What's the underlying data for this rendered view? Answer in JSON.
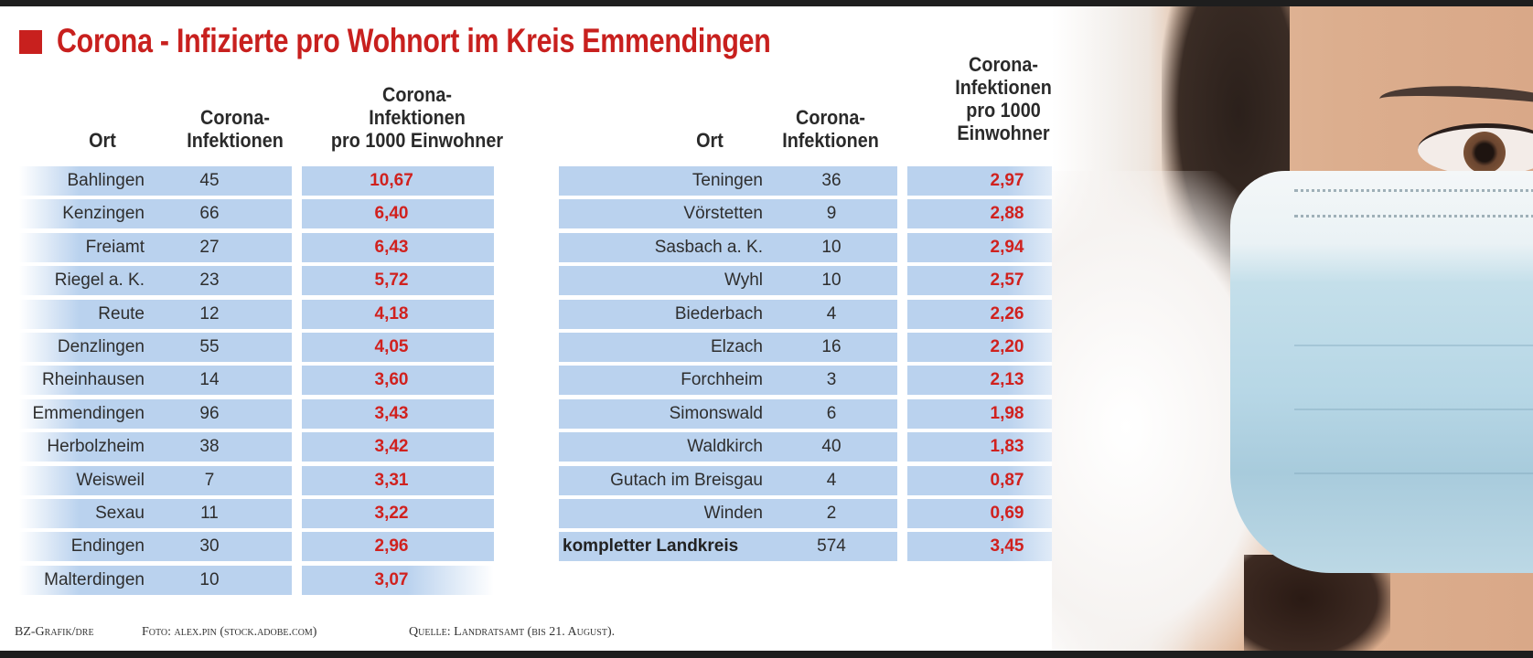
{
  "title": "Corona - Infizierte pro Wohnort im Kreis Emmendingen",
  "colors": {
    "accent": "#c8201e",
    "bar": "#bad2ee",
    "value": "#d0211e"
  },
  "left_headers": {
    "ort": "Ort",
    "inf_1": "Corona-",
    "inf_2": "Infektionen",
    "rate_1": "Corona-",
    "rate_2": "Infektionen",
    "rate_3": "pro 1000 Einwohner"
  },
  "right_headers": {
    "ort": "Ort",
    "inf_1": "Corona-",
    "inf_2": "Infektionen",
    "rate_1": "Corona-",
    "rate_2": "Infektionen",
    "rate_3": "pro 1000",
    "rate_4": "Einwohner"
  },
  "left_rows": [
    {
      "ort": "Bahlingen",
      "infektionen": "45",
      "pro_1000": "10,67"
    },
    {
      "ort": "Kenzingen",
      "infektionen": "66",
      "pro_1000": "6,40"
    },
    {
      "ort": "Freiamt",
      "infektionen": "27",
      "pro_1000": "6,43"
    },
    {
      "ort": "Riegel a. K.",
      "infektionen": "23",
      "pro_1000": "5,72"
    },
    {
      "ort": "Reute",
      "infektionen": "12",
      "pro_1000": "4,18"
    },
    {
      "ort": "Denzlingen",
      "infektionen": "55",
      "pro_1000": "4,05"
    },
    {
      "ort": "Rheinhausen",
      "infektionen": "14",
      "pro_1000": "3,60"
    },
    {
      "ort": "Emmendingen",
      "infektionen": "96",
      "pro_1000": "3,43"
    },
    {
      "ort": "Herbolzheim",
      "infektionen": "38",
      "pro_1000": "3,42"
    },
    {
      "ort": "Weisweil",
      "infektionen": "7",
      "pro_1000": "3,31"
    },
    {
      "ort": "Sexau",
      "infektionen": "11",
      "pro_1000": "3,22"
    },
    {
      "ort": "Endingen",
      "infektionen": "30",
      "pro_1000": "2,96"
    },
    {
      "ort": "Malterdingen",
      "infektionen": "10",
      "pro_1000": "3,07"
    }
  ],
  "right_rows": [
    {
      "ort": "Teningen",
      "infektionen": "36",
      "pro_1000": "2,97"
    },
    {
      "ort": "Vörstetten",
      "infektionen": "9",
      "pro_1000": "2,88"
    },
    {
      "ort": "Sasbach a. K.",
      "infektionen": "10",
      "pro_1000": "2,94"
    },
    {
      "ort": "Wyhl",
      "infektionen": "10",
      "pro_1000": "2,57"
    },
    {
      "ort": "Biederbach",
      "infektionen": "4",
      "pro_1000": "2,26"
    },
    {
      "ort": "Elzach",
      "infektionen": "16",
      "pro_1000": "2,20"
    },
    {
      "ort": "Forchheim",
      "infektionen": "3",
      "pro_1000": "2,13"
    },
    {
      "ort": "Simonswald",
      "infektionen": "6",
      "pro_1000": "1,98"
    },
    {
      "ort": "Waldkirch",
      "infektionen": "40",
      "pro_1000": "1,83"
    },
    {
      "ort": "Gutach im Breisgau",
      "infektionen": "4",
      "pro_1000": "0,87"
    },
    {
      "ort": "Winden",
      "infektionen": "2",
      "pro_1000": "0,69"
    }
  ],
  "total": {
    "ort": "kompletter Landkreis",
    "infektionen": "574",
    "pro_1000": "3,45"
  },
  "footer": {
    "credit": "BZ-Grafik/dre",
    "photo": "Foto: alex.pin (stock.adobe.com)",
    "source": "Quelle: Landratsamt (bis 21. August)."
  }
}
